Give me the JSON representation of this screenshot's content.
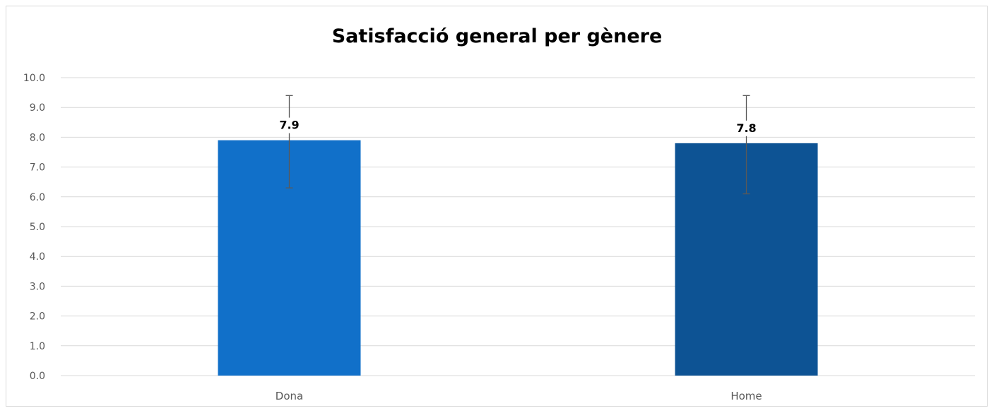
{
  "chart_data": {
    "type": "bar",
    "title": "Satisfacció general per gènere",
    "categories": [
      "Dona",
      "Home"
    ],
    "values": [
      7.9,
      7.8
    ],
    "value_labels": [
      "7.9",
      "7.8"
    ],
    "error_bars": [
      {
        "low": 6.3,
        "high": 9.4
      },
      {
        "low": 6.1,
        "high": 9.4
      }
    ],
    "bar_colors": [
      "#1170c9",
      "#0d5394"
    ],
    "ylim": [
      0,
      10
    ],
    "y_ticks": [
      "0.0",
      "1.0",
      "2.0",
      "3.0",
      "4.0",
      "5.0",
      "6.0",
      "7.0",
      "8.0",
      "9.0",
      "10.0"
    ],
    "xlabel": "",
    "ylabel": "",
    "grid": true,
    "legend": "none"
  }
}
